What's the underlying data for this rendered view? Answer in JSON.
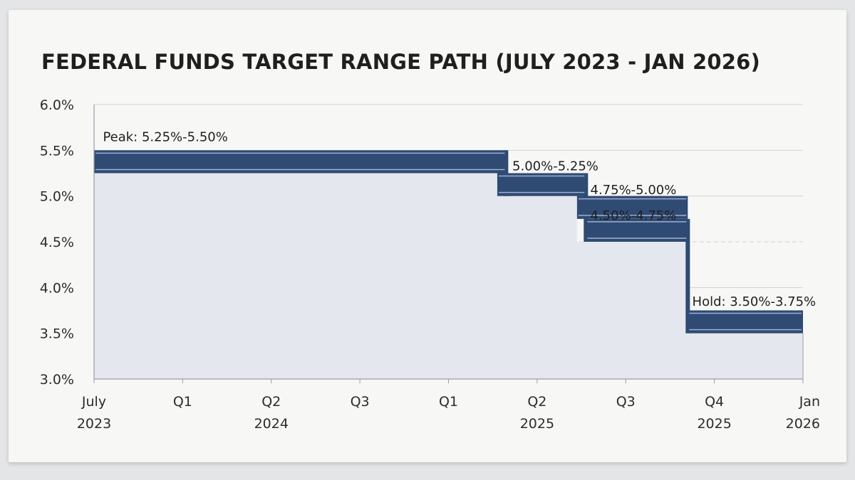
{
  "chart_data": {
    "type": "area",
    "title": "FEDERAL FUNDS TARGET RANGE PATH (JULY 2023 - JAN 2026)",
    "xlabel": "",
    "ylabel": "",
    "ylim": [
      3.0,
      6.0
    ],
    "y_ticks": [
      "6.0%",
      "5.5%",
      "5.0%",
      "4.5%",
      "4.0%",
      "3.5%",
      "3.0%"
    ],
    "y_tick_values": [
      6.0,
      5.5,
      5.0,
      4.5,
      4.0,
      3.5,
      3.0
    ],
    "x_ticks": [
      {
        "line1": "July",
        "line2": "2023"
      },
      {
        "line1": "Q1",
        "line2": ""
      },
      {
        "line1": "Q2",
        "line2": "2024"
      },
      {
        "line1": "Q3",
        "line2": ""
      },
      {
        "line1": "Q1",
        "line2": ""
      },
      {
        "line1": "Q2",
        "line2": "2025"
      },
      {
        "line1": "Q3",
        "line2": ""
      },
      {
        "line1": "Q4",
        "line2": "2025"
      },
      {
        "line1": "Jan",
        "line2": "2026"
      }
    ],
    "grid": true,
    "series": [
      {
        "ranges": [
          {
            "x_start": 0.0,
            "x_end": 4.65,
            "lower": 5.25,
            "upper": 5.5
          },
          {
            "x_start": 4.55,
            "x_end": 5.55,
            "lower": 5.0,
            "upper": 5.25
          },
          {
            "x_start": 5.45,
            "x_end": 6.7,
            "lower": 4.75,
            "upper": 5.0
          },
          {
            "x_start": 5.55,
            "x_end": 6.7,
            "lower": 4.5,
            "upper": 4.75
          },
          {
            "x_start": 6.7,
            "x_end": 8.0,
            "lower": 3.5,
            "upper": 3.75
          }
        ]
      }
    ],
    "annotations": [
      {
        "text": "Peak: 5.25%-5.50%",
        "x": 0.1,
        "y": 5.6
      },
      {
        "text": "5.00%-5.25%",
        "x": 4.72,
        "y": 5.28
      },
      {
        "text": "4.75%-5.00%",
        "x": 5.6,
        "y": 5.02
      },
      {
        "text": "4.50%-4.75%",
        "x": 5.6,
        "y": 4.74
      },
      {
        "text": "Hold: 3.50%-3.75%",
        "x": 6.75,
        "y": 3.8
      }
    ],
    "colors": {
      "band": "#2f4a73",
      "band_highlight": "#9fb2cd",
      "fill": "#e4e7ee",
      "grid": "#cfd2d6",
      "axis": "#9a9da3"
    }
  }
}
